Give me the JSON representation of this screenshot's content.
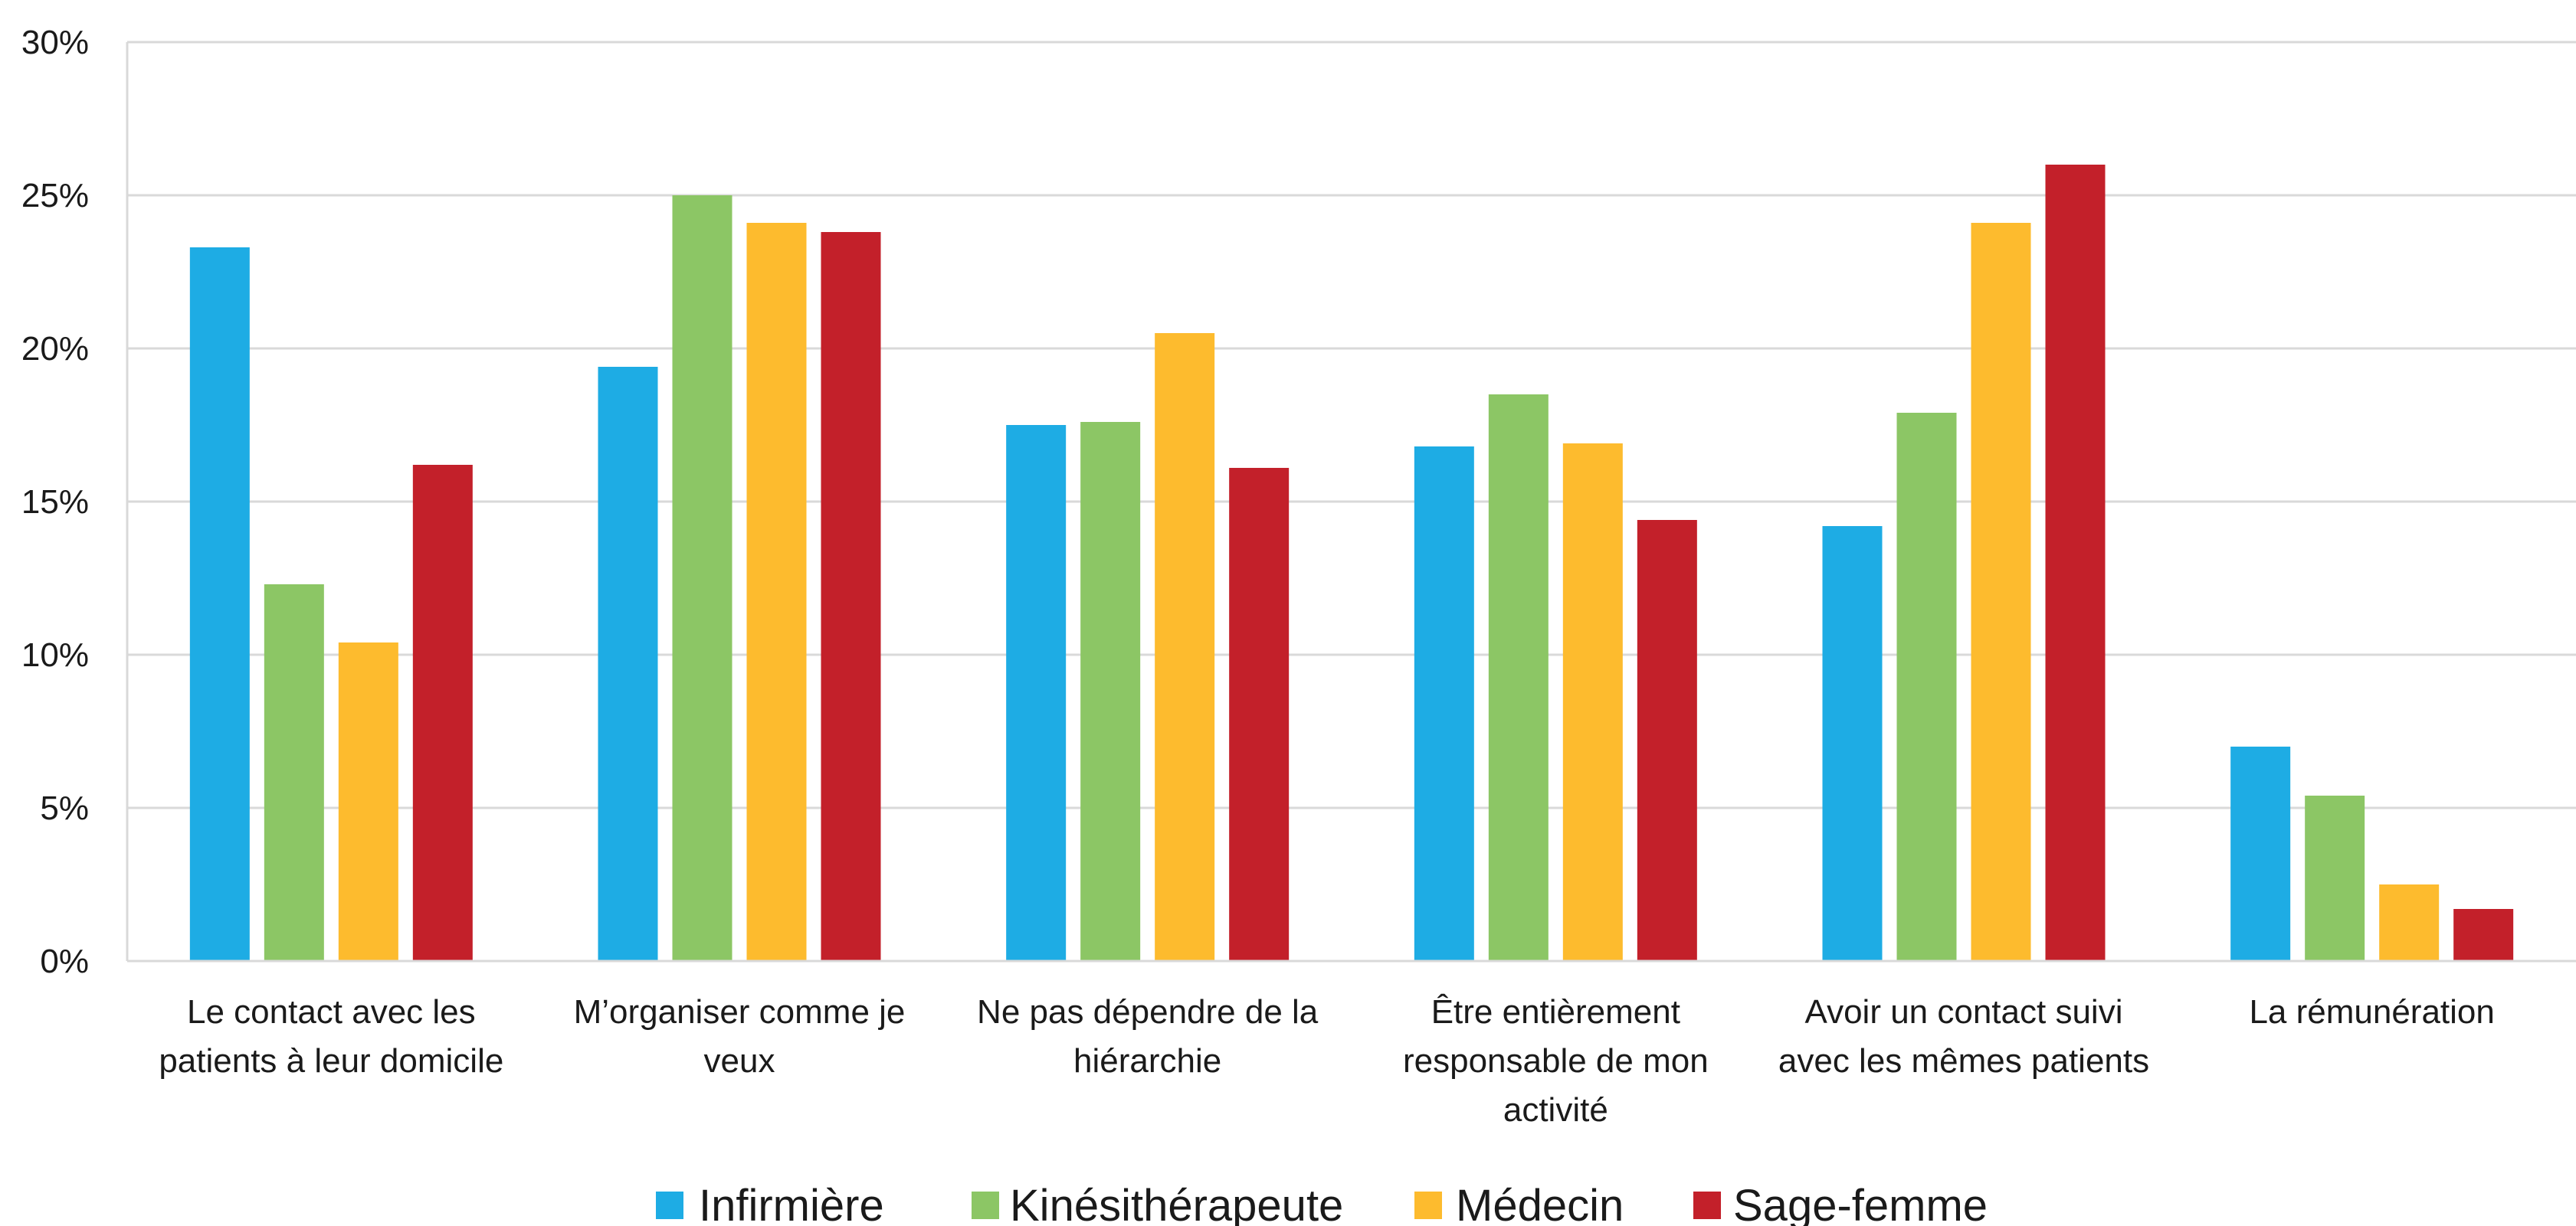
{
  "chart_data": {
    "type": "bar",
    "categories": [
      [
        "Le contact avec les",
        "patients à leur domicile"
      ],
      [
        "M’organiser comme je",
        "veux"
      ],
      [
        "Ne pas dépendre de la",
        "hiérarchie"
      ],
      [
        "Être entièrement",
        "responsable de mon",
        "activité"
      ],
      [
        "Avoir un contact suivi",
        "avec les mêmes patients"
      ],
      [
        "La rémunération"
      ]
    ],
    "series": [
      {
        "name": "Infirmière",
        "color": "#1EACE4",
        "values": [
          0.233,
          0.194,
          0.175,
          0.168,
          0.142,
          0.07
        ]
      },
      {
        "name": "Kinésithérapeute",
        "color": "#8CC665",
        "values": [
          0.123,
          0.25,
          0.176,
          0.185,
          0.179,
          0.054
        ]
      },
      {
        "name": "Médecin",
        "color": "#FDBB2E",
        "values": [
          0.104,
          0.241,
          0.205,
          0.169,
          0.241,
          0.025
        ]
      },
      {
        "name": "Sage-femme",
        "color": "#C3202A",
        "values": [
          0.162,
          0.238,
          0.161,
          0.144,
          0.26,
          0.017
        ]
      }
    ],
    "yticks": [
      "0%",
      "5%",
      "10%",
      "15%",
      "20%",
      "25%",
      "30%"
    ],
    "ylim": [
      0,
      0.3
    ],
    "grid": true,
    "legend_position": "bottom"
  }
}
